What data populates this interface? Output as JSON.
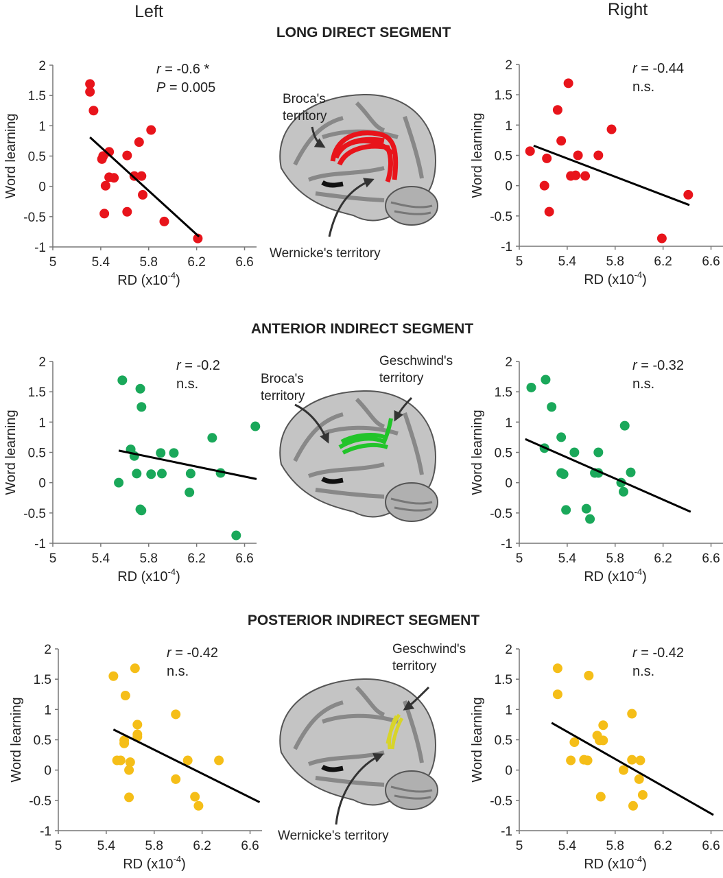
{
  "column_headers": [
    "Left",
    "Right"
  ],
  "segments": [
    "LONG DIRECT SEGMENT",
    "ANTERIOR INDIRECT SEGMENT",
    "POSTERIOR INDIRECT SEGMENT"
  ],
  "brain_labels": [
    {
      "upper": [
        "Broca's",
        "territory"
      ],
      "lower": "Wernicke's territory"
    },
    {
      "left": [
        "Broca's",
        "territory"
      ],
      "right": [
        "Geschwind's",
        "territory"
      ]
    },
    {
      "upper": [
        "Geschwind's",
        "territory"
      ],
      "lower": "Wernicke's territory"
    }
  ],
  "chart_data": [
    {
      "type": "scatter",
      "color": "#e8141b",
      "x": [
        5.31,
        5.31,
        5.34,
        5.82,
        5.72,
        5.47,
        5.42,
        5.41,
        5.62,
        5.68,
        5.74,
        5.47,
        5.51,
        5.44,
        5.75,
        5.43,
        5.62,
        5.93,
        6.21
      ],
      "values": [
        1.69,
        1.56,
        1.25,
        0.93,
        0.73,
        0.57,
        0.5,
        0.45,
        0.51,
        0.17,
        0.17,
        0.15,
        0.14,
        0.01,
        -0.14,
        -0.45,
        -0.42,
        -0.58,
        -0.86
      ],
      "fit": {
        "x": [
          5.31,
          6.22
        ],
        "y": [
          0.81,
          -0.83
        ]
      },
      "xlim": [
        5,
        6.7
      ],
      "ylim": [
        -1,
        2
      ],
      "xticks": [
        5,
        5.4,
        5.8,
        6.2,
        6.6
      ],
      "yticks": [
        -1,
        -0.5,
        0,
        0.5,
        1,
        1.5,
        2
      ],
      "x_label": [
        "RD (x10",
        "-4",
        ")"
      ],
      "y_label": "Word learning",
      "annotations": [
        {
          "italic": "r",
          "text": " = -0.6 *"
        },
        {
          "italic": "P",
          "text": " = 0.005"
        }
      ]
    },
    {
      "type": "scatter",
      "color": "#e8141b",
      "x": [
        5.09,
        5.23,
        5.41,
        5.32,
        5.77,
        5.35,
        5.49,
        5.66,
        5.43,
        5.47,
        5.55,
        5.21,
        6.41,
        5.25,
        6.19
      ],
      "values": [
        0.57,
        0.45,
        1.69,
        1.25,
        0.93,
        0.74,
        0.5,
        0.5,
        0.16,
        0.17,
        0.16,
        0,
        -0.15,
        -0.43,
        -0.87
      ],
      "fit": {
        "x": [
          5.12,
          6.42
        ],
        "y": [
          0.66,
          -0.32
        ]
      },
      "xlim": [
        5,
        6.7
      ],
      "ylim": [
        -1,
        2
      ],
      "xticks": [
        5,
        5.4,
        5.8,
        6.2,
        6.6
      ],
      "yticks": [
        -1,
        -0.5,
        0,
        0.5,
        1,
        1.5,
        2
      ],
      "x_label": [
        "RD (x10",
        "-4",
        ")"
      ],
      "y_label": "Word learning",
      "annotations": [
        {
          "italic": "r",
          "text": " = -0.44"
        },
        {
          "text": "n.s."
        }
      ]
    },
    {
      "type": "scatter",
      "color": "#1aa85a",
      "x": [
        5.58,
        5.73,
        5.74,
        6.69,
        6.33,
        5.65,
        5.68,
        5.9,
        6.01,
        5.7,
        5.82,
        5.91,
        6.15,
        6.4,
        5.55,
        6.14,
        5.73,
        5.74,
        6.53
      ],
      "values": [
        1.69,
        1.55,
        1.25,
        0.93,
        0.74,
        0.55,
        0.44,
        0.49,
        0.49,
        0.15,
        0.14,
        0.15,
        0.15,
        0.16,
        0,
        -0.16,
        -0.44,
        -0.46,
        -0.87
      ],
      "fit": {
        "x": [
          5.55,
          6.7
        ],
        "y": [
          0.53,
          0.06
        ]
      },
      "xlim": [
        5,
        6.7
      ],
      "ylim": [
        -1,
        2
      ],
      "xticks": [
        5,
        5.4,
        5.8,
        6.2,
        6.6
      ],
      "yticks": [
        -1,
        -0.5,
        0,
        0.5,
        1,
        1.5,
        2
      ],
      "x_label": [
        "RD (x10",
        "-4",
        ")"
      ],
      "y_label": "Word learning",
      "annotations": [
        {
          "italic": "r",
          "text": " = -0.2"
        },
        {
          "text": "n.s."
        }
      ]
    },
    {
      "type": "scatter",
      "color": "#1aa85a",
      "x": [
        5.22,
        5.1,
        5.27,
        5.88,
        5.35,
        5.21,
        5.46,
        5.66,
        5.35,
        5.37,
        5.63,
        5.66,
        5.93,
        5.85,
        5.87,
        5.39,
        5.56,
        5.59
      ],
      "values": [
        1.7,
        1.57,
        1.25,
        0.94,
        0.75,
        0.57,
        0.5,
        0.5,
        0.16,
        0.14,
        0.16,
        0.16,
        0.17,
        0,
        -0.15,
        -0.45,
        -0.43,
        -0.6
      ],
      "fit": {
        "x": [
          5.05,
          6.43
        ],
        "y": [
          0.72,
          -0.48
        ]
      },
      "xlim": [
        5,
        6.7
      ],
      "ylim": [
        -1,
        2
      ],
      "xticks": [
        5,
        5.4,
        5.8,
        6.2,
        6.6
      ],
      "yticks": [
        -1,
        -0.5,
        0,
        0.5,
        1,
        1.5,
        2
      ],
      "x_label": [
        "RD (x10",
        "-4",
        ")"
      ],
      "y_label": "Word learning",
      "annotations": [
        {
          "italic": "r",
          "text": " = -0.32"
        },
        {
          "text": "n.s."
        }
      ]
    },
    {
      "type": "scatter",
      "color": "#f5be18",
      "x": [
        5.46,
        5.64,
        5.56,
        5.98,
        5.66,
        5.66,
        5.66,
        5.55,
        5.55,
        5.49,
        5.52,
        5.6,
        6.08,
        6.34,
        5.59,
        5.98,
        5.59,
        6.14,
        6.17
      ],
      "values": [
        1.55,
        1.68,
        1.23,
        0.92,
        0.75,
        0.59,
        0.55,
        0.49,
        0.44,
        0.16,
        0.16,
        0.13,
        0.16,
        0.16,
        0,
        -0.15,
        -0.45,
        -0.44,
        -0.59
      ],
      "fit": {
        "x": [
          5.46,
          6.68
        ],
        "y": [
          0.67,
          -0.53
        ]
      },
      "xlim": [
        5,
        6.7
      ],
      "ylim": [
        -1,
        2
      ],
      "xticks": [
        5,
        5.4,
        5.8,
        6.2,
        6.6
      ],
      "yticks": [
        -1,
        -0.5,
        0,
        0.5,
        1,
        1.5,
        2
      ],
      "x_label": [
        "RD (x10",
        "-4",
        ")"
      ],
      "y_label": "Word learning",
      "annotations": [
        {
          "italic": "r",
          "text": " = -0.42"
        },
        {
          "text": "n.s."
        }
      ]
    },
    {
      "type": "scatter",
      "color": "#f5be18",
      "x": [
        5.32,
        5.32,
        5.58,
        5.94,
        5.7,
        5.65,
        5.67,
        5.7,
        5.46,
        5.43,
        5.54,
        5.57,
        5.94,
        6.01,
        5.87,
        6.0,
        6.03,
        5.68,
        5.95
      ],
      "values": [
        1.68,
        1.25,
        1.56,
        0.93,
        0.74,
        0.57,
        0.49,
        0.49,
        0.46,
        0.16,
        0.17,
        0.16,
        0.17,
        0.16,
        0,
        -0.15,
        -0.41,
        -0.44,
        -0.59
      ],
      "fit": {
        "x": [
          5.27,
          6.62
        ],
        "y": [
          0.78,
          -0.74
        ]
      },
      "xlim": [
        5,
        6.7
      ],
      "ylim": [
        -1,
        2
      ],
      "xticks": [
        5,
        5.4,
        5.8,
        6.2,
        6.6
      ],
      "yticks": [
        -1,
        -0.5,
        0,
        0.5,
        1,
        1.5,
        2
      ],
      "x_label": [
        "RD (x10",
        "-4",
        ")"
      ],
      "y_label": "Word learning",
      "annotations": [
        {
          "italic": "r",
          "text": " = -0.42"
        },
        {
          "text": "n.s."
        }
      ]
    }
  ]
}
